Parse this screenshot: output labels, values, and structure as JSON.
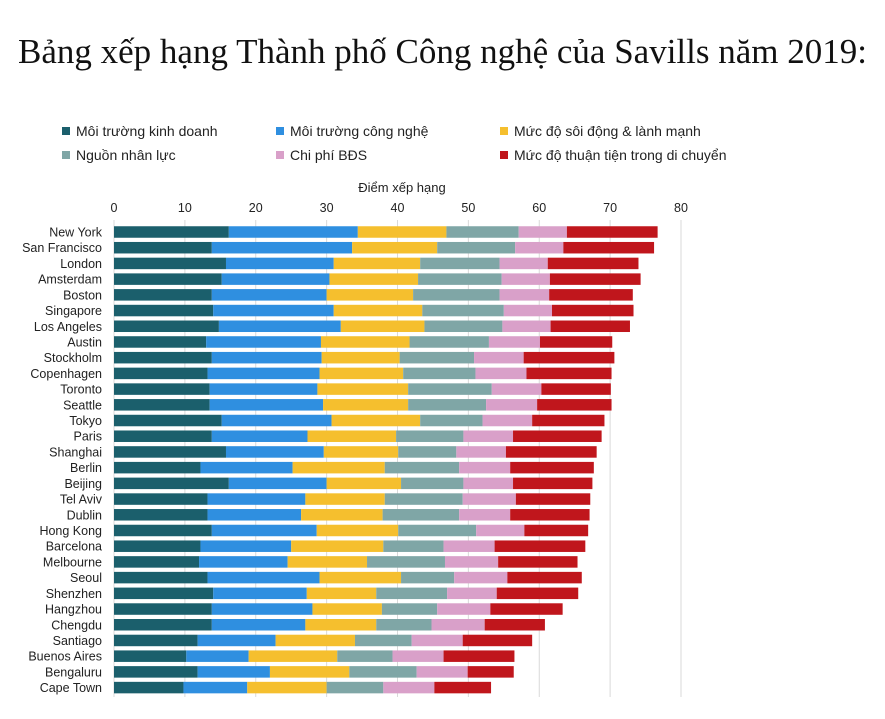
{
  "title": "Bảng xếp hạng Thành phố Công nghệ của Savills năm 2019:",
  "chart_data": {
    "type": "bar",
    "orientation": "horizontal",
    "stacked": true,
    "title": "Bảng xếp hạng Thành phố Công nghệ của Savills năm 2019:",
    "xlabel": "Điểm xếp hạng",
    "xlim": [
      0,
      80
    ],
    "xticks": [
      0,
      10,
      20,
      30,
      40,
      50,
      60,
      70,
      80
    ],
    "grid": true,
    "legend_position": "top",
    "categories": [
      "New York",
      "San Francisco",
      "London",
      "Amsterdam",
      "Boston",
      "Singapore",
      "Los Angeles",
      "Austin",
      "Stockholm",
      "Copenhagen",
      "Toronto",
      "Seattle",
      "Tokyo",
      "Paris",
      "Shanghai",
      "Berlin",
      "Beijing",
      "Tel Aviv",
      "Dublin",
      "Hong Kong",
      "Barcelona",
      "Melbourne",
      "Seoul",
      "Shenzhen",
      "Hangzhou",
      "Chengdu",
      "Santiago",
      "Buenos Aires",
      "Bengaluru",
      "Cape Town"
    ],
    "series": [
      {
        "name": "Môi trường kinh doanh",
        "color": "#1b5f6c",
        "values": [
          16.2,
          13.8,
          15.8,
          15.2,
          13.8,
          14.0,
          14.8,
          13.0,
          13.8,
          13.2,
          13.5,
          13.5,
          15.2,
          13.8,
          15.8,
          12.2,
          16.2,
          13.2,
          13.2,
          13.8,
          12.2,
          12.0,
          13.2,
          14.0,
          13.8,
          13.8,
          11.8,
          10.2,
          11.8,
          9.8
        ]
      },
      {
        "name": "Môi trường công nghệ",
        "color": "#2f8fe0",
        "values": [
          18.2,
          19.8,
          15.2,
          15.2,
          16.2,
          17.0,
          17.2,
          16.2,
          15.5,
          15.8,
          15.2,
          16.0,
          15.5,
          13.5,
          13.8,
          13.0,
          13.8,
          13.8,
          13.2,
          14.8,
          12.8,
          12.5,
          15.8,
          13.2,
          14.2,
          13.2,
          11.0,
          8.8,
          10.2,
          9.0
        ]
      },
      {
        "name": "Mức độ sôi động & lành mạnh",
        "color": "#f5bf2e",
        "values": [
          12.5,
          12.0,
          12.2,
          12.5,
          12.2,
          12.5,
          11.8,
          12.5,
          11.0,
          11.8,
          12.8,
          12.0,
          12.5,
          12.5,
          10.5,
          13.0,
          10.5,
          11.2,
          11.5,
          11.5,
          13.0,
          11.2,
          11.5,
          9.8,
          9.8,
          10.0,
          11.2,
          12.5,
          11.2,
          11.2
        ]
      },
      {
        "name": "Nguồn nhân lực",
        "color": "#7fa6a6",
        "values": [
          10.2,
          11.0,
          11.2,
          11.8,
          12.2,
          11.5,
          11.0,
          11.2,
          10.5,
          10.2,
          11.8,
          11.0,
          8.8,
          9.5,
          8.2,
          10.5,
          8.8,
          11.0,
          10.8,
          11.0,
          8.5,
          11.0,
          7.5,
          10.0,
          7.8,
          7.8,
          8.0,
          7.8,
          9.5,
          8.0
        ]
      },
      {
        "name": "Chi phí BĐS",
        "color": "#d9a0c9",
        "values": [
          6.8,
          6.8,
          6.8,
          6.8,
          7.0,
          6.8,
          6.8,
          7.2,
          7.0,
          7.2,
          7.0,
          7.2,
          7.0,
          7.0,
          7.0,
          7.2,
          7.0,
          7.5,
          7.2,
          6.8,
          7.2,
          7.5,
          7.5,
          7.0,
          7.5,
          7.5,
          7.2,
          7.2,
          7.2,
          7.2
        ]
      },
      {
        "name": "Mức độ thuận tiện trong di chuyển",
        "color": "#c0161c",
        "values": [
          12.8,
          12.8,
          12.8,
          12.8,
          11.8,
          11.5,
          11.2,
          10.2,
          12.8,
          12.0,
          9.8,
          10.5,
          10.2,
          12.5,
          12.8,
          11.8,
          11.2,
          10.5,
          11.2,
          9.0,
          12.8,
          11.2,
          10.5,
          11.5,
          10.2,
          8.5,
          9.8,
          10.0,
          6.5,
          8.0
        ]
      }
    ]
  }
}
